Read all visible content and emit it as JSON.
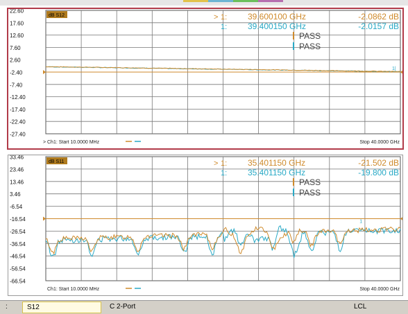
{
  "window": {
    "tab_colors": [
      "#e2c24a",
      "#6db4d3",
      "#6bbf5b",
      "#b66fb0"
    ]
  },
  "panes": [
    {
      "id": "s12",
      "active": true,
      "trace_label": "dB S12",
      "y_ticks": [
        "22.60",
        "17.60",
        "12.60",
        "7.60",
        "2.60",
        "-2.40",
        "-7.40",
        "-12.40",
        "-17.40",
        "-22.40",
        "-27.40"
      ],
      "markers": [
        {
          "arrow": ">",
          "index": "1:",
          "freq": "39.600100 GHz",
          "value": "-2.0862 dB",
          "color": "#cf8a2b"
        },
        {
          "arrow": "",
          "index": "1:",
          "freq": "39.400150 GHz",
          "value": "-2.0157 dB",
          "color": "#28a9c6"
        }
      ],
      "limit_results": [
        {
          "label": "PASS",
          "color": "#cf8a2b"
        },
        {
          "label": "PASS",
          "color": "#28a9c6"
        }
      ],
      "start_label": "Ch1: Start  10.0000 MHz",
      "stop_label": "Stop  40.0000 GHz",
      "start_prefix": ">",
      "colors": {
        "trace1": "#cf8a2b",
        "trace2": "#28a9c6",
        "grid": "#777777",
        "reference": "#cf8a2b"
      },
      "reference_level": -2.4
    },
    {
      "id": "s11",
      "active": false,
      "trace_label": "dB S11",
      "y_ticks": [
        "33.46",
        "23.46",
        "13.46",
        "3.46",
        "-6.54",
        "-16.54",
        "-26.54",
        "-36.54",
        "-46.54",
        "-56.54",
        "-66.54"
      ],
      "markers": [
        {
          "arrow": ">",
          "index": "1:",
          "freq": "35.401150 GHz",
          "value": "-21.502 dB",
          "color": "#cf8a2b"
        },
        {
          "arrow": "",
          "index": "1:",
          "freq": "35.401150 GHz",
          "value": "-19.800 dB",
          "color": "#28a9c6"
        }
      ],
      "limit_results": [
        {
          "label": "PASS",
          "color": "#cf8a2b"
        },
        {
          "label": "PASS",
          "color": "#28a9c6"
        }
      ],
      "start_label": "Ch1: Start  10.0000 MHz",
      "stop_label": "Stop  40.0000 GHz",
      "start_prefix": "",
      "colors": {
        "trace1": "#cf8a2b",
        "trace2": "#28a9c6",
        "grid": "#777777",
        "reference": "#cf8a2b"
      },
      "reference_level": -16.54
    }
  ],
  "status": {
    "prefix": ":",
    "trace": "S12",
    "cal": "C  2-Port",
    "mode": "LCL"
  }
}
